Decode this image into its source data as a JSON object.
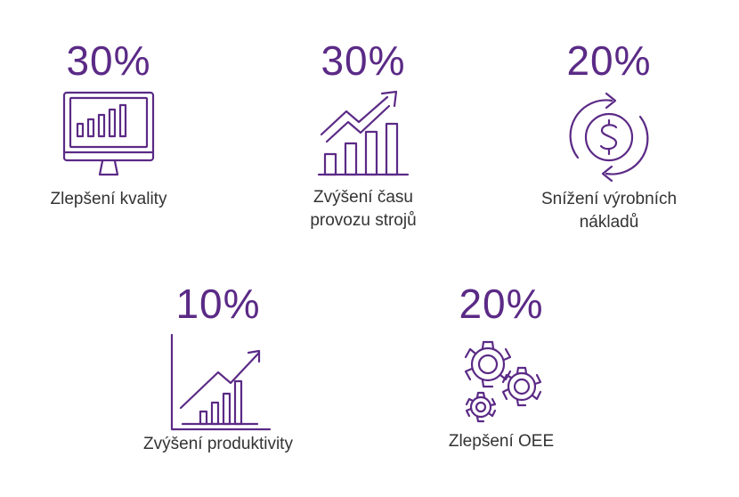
{
  "stats": [
    {
      "value": "30%",
      "label_line1": "Zlepšení kvality",
      "label_line2": "",
      "icon": "monitor-bar-chart-icon"
    },
    {
      "value": "30%",
      "label_line1": "Zvýšení času",
      "label_line2": "provozu strojů",
      "icon": "rising-bars-arrow-icon"
    },
    {
      "value": "20%",
      "label_line1": "Snížení výrobních",
      "label_line2": "nákladů",
      "icon": "dollar-cycle-icon"
    },
    {
      "value": "10%",
      "label_line1": "Zvýšení produktivity",
      "label_line2": "",
      "icon": "growth-chart-axes-icon"
    },
    {
      "value": "20%",
      "label_line1": "Zlepšení OEE",
      "label_line2": "",
      "icon": "gears-icon"
    }
  ],
  "colors": {
    "accent": "#5b2a86",
    "text": "#333333"
  }
}
